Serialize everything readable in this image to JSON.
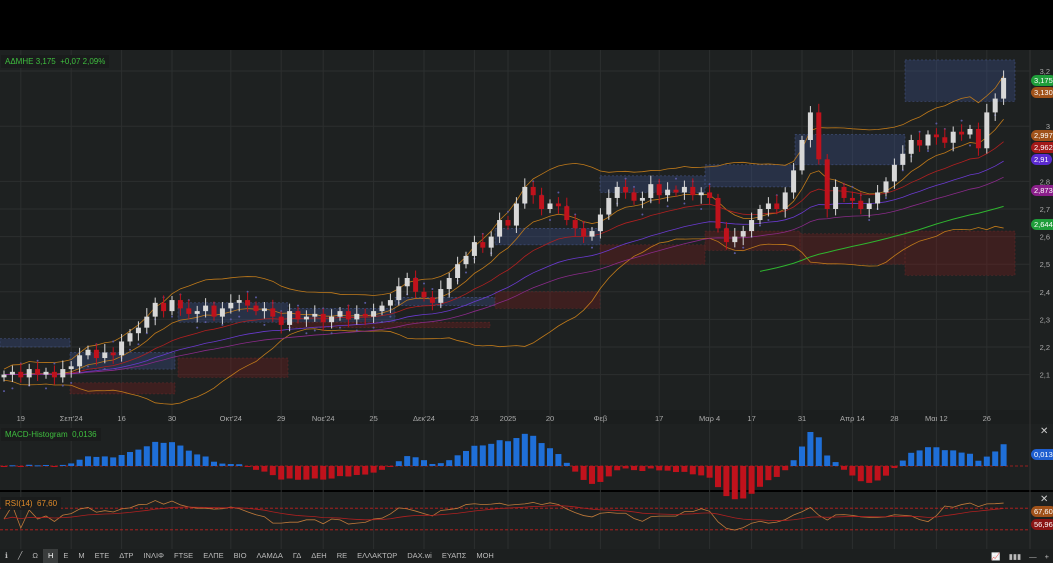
{
  "chart_data": {
    "type": "candlestick",
    "symbol": "ΑΔΜΗΕ",
    "last": "3,175",
    "change": "+0,07",
    "change_pct": "2,09%",
    "ylim": [
      2.05,
      3.25
    ],
    "y_ticks": [
      {
        "v": 3.2,
        "label": "3,2"
      },
      {
        "v": 3.0,
        "label": "3"
      },
      {
        "v": 2.8,
        "label": "2,8"
      },
      {
        "v": 2.7,
        "label": "2,7"
      },
      {
        "v": 2.6,
        "label": "2,6"
      },
      {
        "v": 2.5,
        "label": "2,5"
      },
      {
        "v": 2.4,
        "label": "2,4"
      },
      {
        "v": 2.3,
        "label": "2,3"
      },
      {
        "v": 2.2,
        "label": "2,2"
      },
      {
        "v": 2.1,
        "label": "2,1"
      }
    ],
    "x_ticks": [
      {
        "i": 2,
        "label": "19"
      },
      {
        "i": 8,
        "label": "Σεπ'24"
      },
      {
        "i": 14,
        "label": "16"
      },
      {
        "i": 20,
        "label": "30"
      },
      {
        "i": 27,
        "label": "Οκτ'24"
      },
      {
        "i": 33,
        "label": "29"
      },
      {
        "i": 38,
        "label": "Νοε'24"
      },
      {
        "i": 44,
        "label": "25"
      },
      {
        "i": 50,
        "label": "Δεκ'24"
      },
      {
        "i": 56,
        "label": "23"
      },
      {
        "i": 60,
        "label": "2025"
      },
      {
        "i": 65,
        "label": "20"
      },
      {
        "i": 71,
        "label": "Φεβ"
      },
      {
        "i": 78,
        "label": "17"
      },
      {
        "i": 84,
        "label": "Μαρ 4"
      },
      {
        "i": 89,
        "label": "17"
      },
      {
        "i": 95,
        "label": "31"
      },
      {
        "i": 101,
        "label": "Απρ 14"
      },
      {
        "i": 106,
        "label": "28"
      },
      {
        "i": 111,
        "label": "Μαι 12"
      },
      {
        "i": 117,
        "label": "26"
      }
    ],
    "closes": [
      2.1,
      2.11,
      2.09,
      2.12,
      2.1,
      2.11,
      2.09,
      2.12,
      2.13,
      2.17,
      2.19,
      2.16,
      2.18,
      2.17,
      2.22,
      2.25,
      2.27,
      2.31,
      2.36,
      2.33,
      2.37,
      2.34,
      2.32,
      2.33,
      2.35,
      2.31,
      2.34,
      2.36,
      2.37,
      2.35,
      2.33,
      2.34,
      2.31,
      2.28,
      2.33,
      2.3,
      2.31,
      2.32,
      2.29,
      2.31,
      2.33,
      2.3,
      2.32,
      2.31,
      2.33,
      2.35,
      2.37,
      2.42,
      2.45,
      2.4,
      2.38,
      2.36,
      2.41,
      2.45,
      2.5,
      2.53,
      2.58,
      2.56,
      2.6,
      2.66,
      2.64,
      2.72,
      2.78,
      2.75,
      2.7,
      2.72,
      2.71,
      2.66,
      2.63,
      2.6,
      2.62,
      2.68,
      2.74,
      2.78,
      2.76,
      2.73,
      2.74,
      2.79,
      2.75,
      2.77,
      2.76,
      2.78,
      2.75,
      2.76,
      2.74,
      2.63,
      2.58,
      2.6,
      2.62,
      2.66,
      2.7,
      2.72,
      2.7,
      2.76,
      2.84,
      2.95,
      3.05,
      2.88,
      2.7,
      2.78,
      2.74,
      2.73,
      2.7,
      2.72,
      2.76,
      2.8,
      2.86,
      2.9,
      2.95,
      2.93,
      2.97,
      2.96,
      2.94,
      2.98,
      2.97,
      2.99,
      2.92,
      3.05,
      3.1,
      3.175
    ],
    "price_badges": [
      {
        "label": "3,175",
        "value": 3.175,
        "color": "#1f9d3a"
      },
      {
        "label": "3,130",
        "value": 3.13,
        "color": "#a0521a"
      },
      {
        "label": "2,997",
        "value": 2.997,
        "color": "#a0521a"
      },
      {
        "label": "2,9624",
        "value": 2.9624,
        "color": "#a31919"
      },
      {
        "label": "2,91",
        "value": 2.91,
        "color": "#5a2ad0"
      },
      {
        "label": "2,8733",
        "value": 2.8733,
        "color": "#8a1f8a"
      },
      {
        "label": "2,6444",
        "value": 2.6444,
        "color": "#1f9d3a"
      }
    ],
    "macd": {
      "title": "MACD-Histogram",
      "value": "0,0136",
      "badge_color": "#1f5fd0"
    },
    "rsi": {
      "title": "RSI(14)",
      "value": "67,60",
      "signal": "56,96",
      "upper": 70,
      "lower": 30
    }
  },
  "toolbar": {
    "items": [
      "Ω",
      "Η",
      "Ε",
      "Μ",
      "ΕΤΕ",
      "ΔΤΡ",
      "ΙΝΛΙΦ",
      "FTSE",
      "ΕΛΠΕ",
      "ΒΙΟ",
      "ΛΑΜΔΑ",
      "ΓΔ",
      "ΔΕΗ",
      "RE",
      "ΕΛΛΑΚΤΩΡ",
      "DAX.wi",
      "ΕΥΑΠΣ",
      "ΜΟΗ"
    ],
    "active": "Η"
  },
  "colors": {
    "up": "#d8d8d8",
    "down": "#c0121c",
    "background": "#1e2121"
  }
}
